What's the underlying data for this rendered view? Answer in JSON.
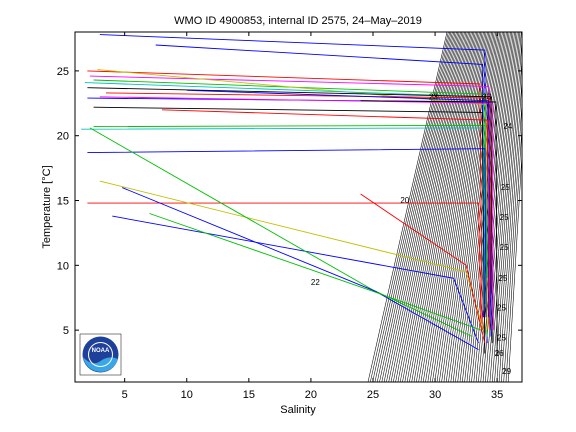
{
  "chart_data": {
    "type": "line",
    "title": "WMO ID 4900853, internal ID 2575, 24–May–2019",
    "xlabel": "Salinity",
    "ylabel": "Temperature [°C]",
    "xlim": [
      1,
      37
    ],
    "ylim": [
      1,
      28
    ],
    "xticks": [
      5,
      10,
      15,
      20,
      25,
      30,
      35
    ],
    "yticks": [
      5,
      10,
      15,
      20,
      25
    ],
    "grid": false,
    "logo": "NOAA",
    "density_contours": {
      "note": "isopycnal background lines",
      "labels": [
        {
          "text": "20",
          "x": 27.2,
          "y": 14.8
        },
        {
          "text": "22",
          "x": 20.0,
          "y": 8.5
        },
        {
          "text": "23",
          "x": 29.5,
          "y": 22.8
        },
        {
          "text": "23",
          "x": 33.8,
          "y": 22.8
        },
        {
          "text": "24",
          "x": 35.5,
          "y": 20.5
        },
        {
          "text": "25",
          "x": 35.3,
          "y": 15.8
        },
        {
          "text": "25",
          "x": 35.2,
          "y": 13.5
        },
        {
          "text": "25",
          "x": 35.2,
          "y": 11.2
        },
        {
          "text": "25",
          "x": 35.1,
          "y": 8.8
        },
        {
          "text": "25",
          "x": 35.0,
          "y": 6.5
        },
        {
          "text": "25",
          "x": 35.0,
          "y": 4.2
        },
        {
          "text": "26",
          "x": 34.8,
          "y": 3.0
        },
        {
          "text": "29",
          "x": 35.4,
          "y": 1.6
        }
      ]
    },
    "series": [
      {
        "color": "#0000ff",
        "x": [
          3.0,
          34.0,
          34.1,
          34.2
        ],
        "y": [
          27.8,
          26.6,
          10.0,
          4.0
        ]
      },
      {
        "color": "#0000ff",
        "x": [
          7.5,
          33.8,
          33.9
        ],
        "y": [
          27.0,
          25.5,
          6.0
        ]
      },
      {
        "color": "#ff0000",
        "x": [
          2.0,
          33.6,
          33.8
        ],
        "y": [
          25.0,
          24.0,
          5.0
        ]
      },
      {
        "color": "#00c000",
        "x": [
          2.5,
          34.0,
          34.2
        ],
        "y": [
          24.3,
          23.2,
          4.5
        ]
      },
      {
        "color": "#ff00ff",
        "x": [
          2.2,
          34.3,
          34.4
        ],
        "y": [
          24.6,
          23.8,
          5.5
        ]
      },
      {
        "color": "#c0c000",
        "x": [
          2.8,
          34.1,
          34.2
        ],
        "y": [
          25.1,
          22.4,
          5.0
        ]
      },
      {
        "color": "#00c0c0",
        "x": [
          1.8,
          33.9,
          34.0
        ],
        "y": [
          24.1,
          23.0,
          7.0
        ]
      },
      {
        "color": "#000000",
        "x": [
          2.0,
          34.5,
          34.6
        ],
        "y": [
          23.7,
          23.0,
          4.0
        ]
      },
      {
        "color": "#0000ff",
        "x": [
          2.0,
          34.2,
          34.3
        ],
        "y": [
          22.9,
          22.6,
          6.0
        ]
      },
      {
        "color": "#ff0000",
        "x": [
          3.5,
          34.4,
          34.5
        ],
        "y": [
          23.3,
          22.9,
          8.0
        ]
      },
      {
        "color": "#00c000",
        "x": [
          2.5,
          34.0,
          34.2
        ],
        "y": [
          20.7,
          20.8,
          9.0
        ]
      },
      {
        "color": "#ff00ff",
        "x": [
          3.0,
          34.6,
          34.7
        ],
        "y": [
          23.0,
          22.5,
          5.0
        ]
      },
      {
        "color": "#00c0c0",
        "x": [
          1.5,
          33.8,
          33.9
        ],
        "y": [
          20.5,
          20.6,
          6.5
        ]
      },
      {
        "color": "#0000ff",
        "x": [
          2.0,
          34.0,
          34.1
        ],
        "y": [
          18.7,
          19.0,
          6.0
        ]
      },
      {
        "color": "#ff0000",
        "x": [
          2.0,
          33.5,
          33.7
        ],
        "y": [
          14.8,
          14.8,
          5.5
        ]
      },
      {
        "color": "#c0c000",
        "x": [
          3.0,
          32.5,
          33.9
        ],
        "y": [
          16.5,
          9.5,
          5.0
        ]
      },
      {
        "color": "#0000ff",
        "x": [
          4.0,
          31.5,
          33.5
        ],
        "y": [
          13.8,
          9.0,
          4.0
        ]
      },
      {
        "color": "#00c000",
        "x": [
          2.2,
          25.0,
          33.0
        ],
        "y": [
          20.6,
          8.1,
          4.5
        ]
      },
      {
        "color": "#0000ff",
        "x": [
          4.8,
          25.2,
          33.5
        ],
        "y": [
          16.0,
          8.0,
          3.5
        ]
      },
      {
        "color": "#00c000",
        "x": [
          7.0,
          25.0,
          33.7
        ],
        "y": [
          14.0,
          8.0,
          5.0
        ]
      },
      {
        "color": "#000000",
        "x": [
          2.5,
          33.8,
          34.0
        ],
        "y": [
          22.2,
          21.8,
          3.2
        ]
      },
      {
        "color": "#ff0000",
        "x": [
          8.0,
          34.2,
          34.4
        ],
        "y": [
          22.0,
          21.2,
          5.0
        ]
      },
      {
        "color": "#0000ff",
        "x": [
          10.0,
          34.3,
          34.5
        ],
        "y": [
          23.5,
          22.7,
          4.5
        ]
      },
      {
        "color": "#000000",
        "x": [
          24.0,
          34.9,
          35.0
        ],
        "y": [
          22.7,
          22.6,
          3.0
        ]
      },
      {
        "color": "#ff0000",
        "x": [
          24.0,
          32.5,
          34.0
        ],
        "y": [
          15.5,
          10.0,
          4.0
        ]
      }
    ]
  }
}
